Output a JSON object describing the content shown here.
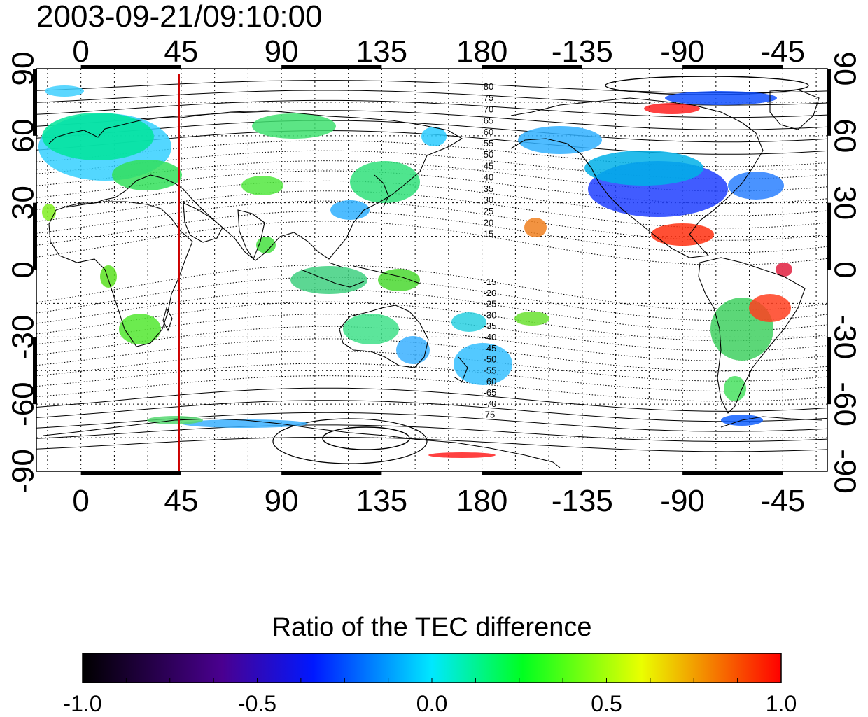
{
  "title": "2003-09-21/09:10:00",
  "map": {
    "lon_ticks": [
      "0",
      "45",
      "90",
      "135",
      "180",
      "-135",
      "-90",
      "-45"
    ],
    "lon_tick_values": [
      0,
      45,
      90,
      135,
      180,
      225,
      270,
      315
    ],
    "lat_ticks": [
      "90",
      "60",
      "30",
      "0",
      "-30",
      "-60",
      "-90"
    ],
    "lat_tick_values": [
      90,
      60,
      30,
      0,
      -30,
      -60,
      -90
    ],
    "lon_range_display": [
      -20,
      335
    ],
    "lat_range": [
      -90,
      90
    ],
    "marker_longitude": 44,
    "marker_color": "#cc0000",
    "contour_labels_north": [
      "80",
      "75",
      "70",
      "65",
      "60",
      "55",
      "50",
      "45",
      "40",
      "35",
      "30",
      "25",
      "20",
      "15"
    ],
    "contour_labels_south": [
      "-15",
      "-20",
      "-25",
      "-30",
      "-35",
      "-40",
      "-45",
      "-50",
      "-55",
      "-60",
      "-65",
      "-70",
      "75"
    ],
    "grid": true
  },
  "colorbar": {
    "title": "Ratio of the TEC difference",
    "ticks": [
      "-1.0",
      "-0.5",
      "0.0",
      "0.5",
      "1.0"
    ],
    "range": [
      -1.0,
      1.0
    ],
    "colormap": [
      "#000000",
      "#4a0090",
      "#0018ff",
      "#00e8ff",
      "#00ff20",
      "#eaff00",
      "#ff0000"
    ]
  }
}
